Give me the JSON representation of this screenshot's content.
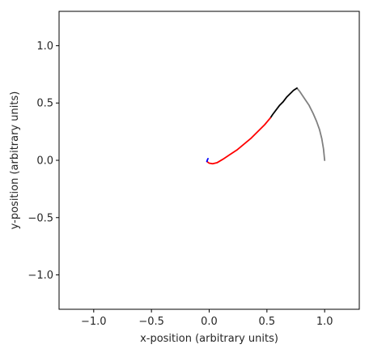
{
  "chart_data": {
    "type": "line",
    "title": "",
    "xlabel": "x-position (arbitrary units)",
    "ylabel": "y-position (arbitrary units)",
    "xlim": [
      -1.3,
      1.3
    ],
    "ylim": [
      -1.3,
      1.3
    ],
    "xticks": [
      -1.0,
      -0.5,
      0.0,
      0.5,
      1.0
    ],
    "yticks": [
      -1.0,
      -0.5,
      0.0,
      0.5,
      1.0
    ],
    "xtick_labels": [
      "−1.0",
      "−0.5",
      "0.0",
      "0.5",
      "1.0"
    ],
    "ytick_labels": [
      "−1.0",
      "−0.5",
      "0.0",
      "0.5",
      "1.0"
    ],
    "grid": false,
    "legend": "none",
    "series": [
      {
        "color": "#808080",
        "x": [
          1.0,
          0.99,
          0.975,
          0.955,
          0.93,
          0.9,
          0.865,
          0.825,
          0.785,
          0.76
        ],
        "y": [
          0.0,
          0.1,
          0.19,
          0.27,
          0.34,
          0.41,
          0.48,
          0.54,
          0.6,
          0.63
        ]
      },
      {
        "color": "#000000",
        "x": [
          0.76,
          0.73,
          0.7,
          0.67,
          0.64,
          0.61,
          0.58,
          0.55,
          0.53
        ],
        "y": [
          0.63,
          0.61,
          0.58,
          0.55,
          0.51,
          0.48,
          0.44,
          0.4,
          0.37
        ]
      },
      {
        "color": "#ff0000",
        "x": [
          0.53,
          0.48,
          0.42,
          0.36,
          0.3,
          0.24,
          0.18,
          0.12,
          0.07,
          0.03,
          0.0,
          -0.02
        ],
        "y": [
          0.37,
          0.31,
          0.25,
          0.19,
          0.14,
          0.09,
          0.05,
          0.01,
          -0.02,
          -0.03,
          -0.025,
          -0.01
        ]
      },
      {
        "color": "#0000ff",
        "x": [
          -0.02,
          -0.015,
          -0.01
        ],
        "y": [
          -0.01,
          0.005,
          0.015
        ]
      }
    ]
  }
}
